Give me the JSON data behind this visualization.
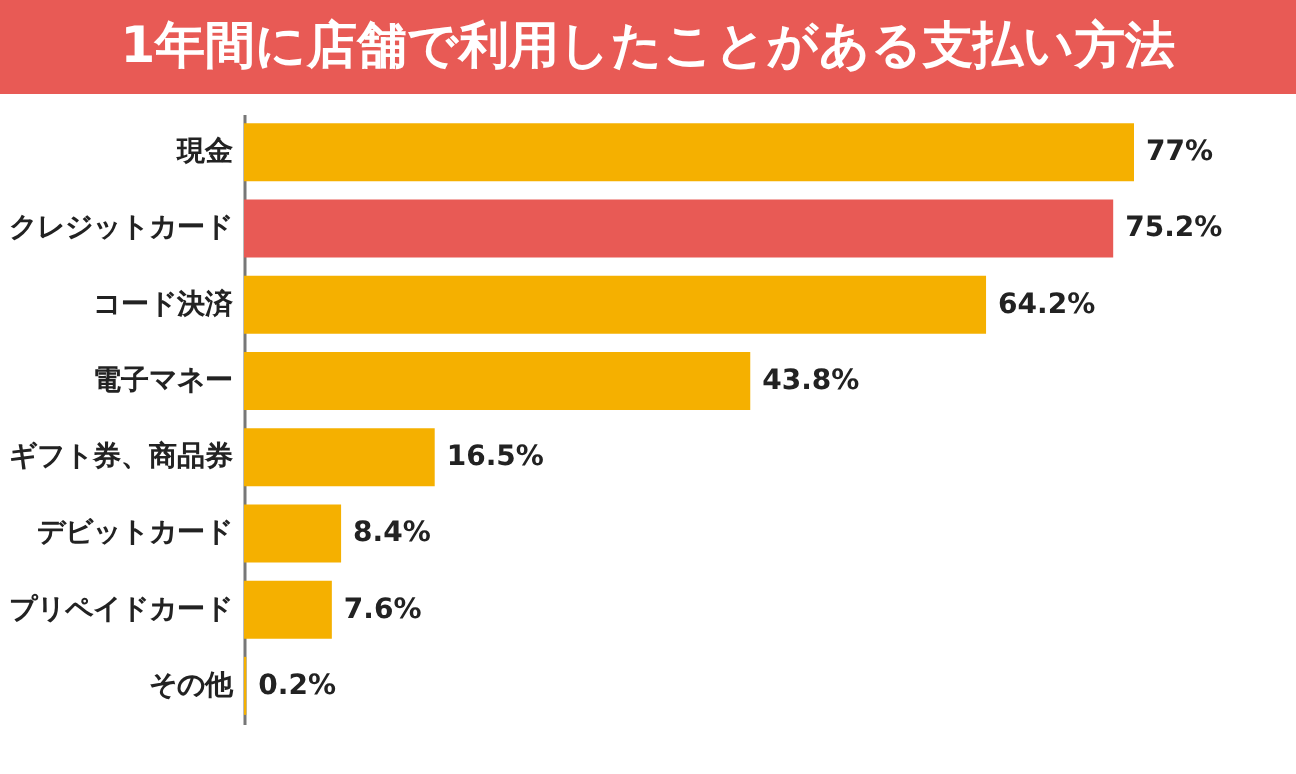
{
  "chart_data": {
    "type": "bar",
    "orientation": "horizontal",
    "title": "1年間に店舗で利用したことがある支払い方法",
    "categories": [
      "現金",
      "クレジットカード",
      "コード決済",
      "電子マネー",
      "ギフト券、商品券",
      "デビットカード",
      "プリペイドカード",
      "その他"
    ],
    "values": [
      77,
      75.2,
      64.2,
      43.8,
      16.5,
      8.4,
      7.6,
      0.2
    ],
    "colors": [
      "#f5b000",
      "#e85a55",
      "#f5b000",
      "#f5b000",
      "#f5b000",
      "#f5b000",
      "#f5b000",
      "#f5b000"
    ],
    "value_labels": [
      "77%",
      "75.2%",
      "64.2%",
      "43.8%",
      "16.5%",
      "8.4%",
      "7.6%",
      "0.2%"
    ]
  }
}
